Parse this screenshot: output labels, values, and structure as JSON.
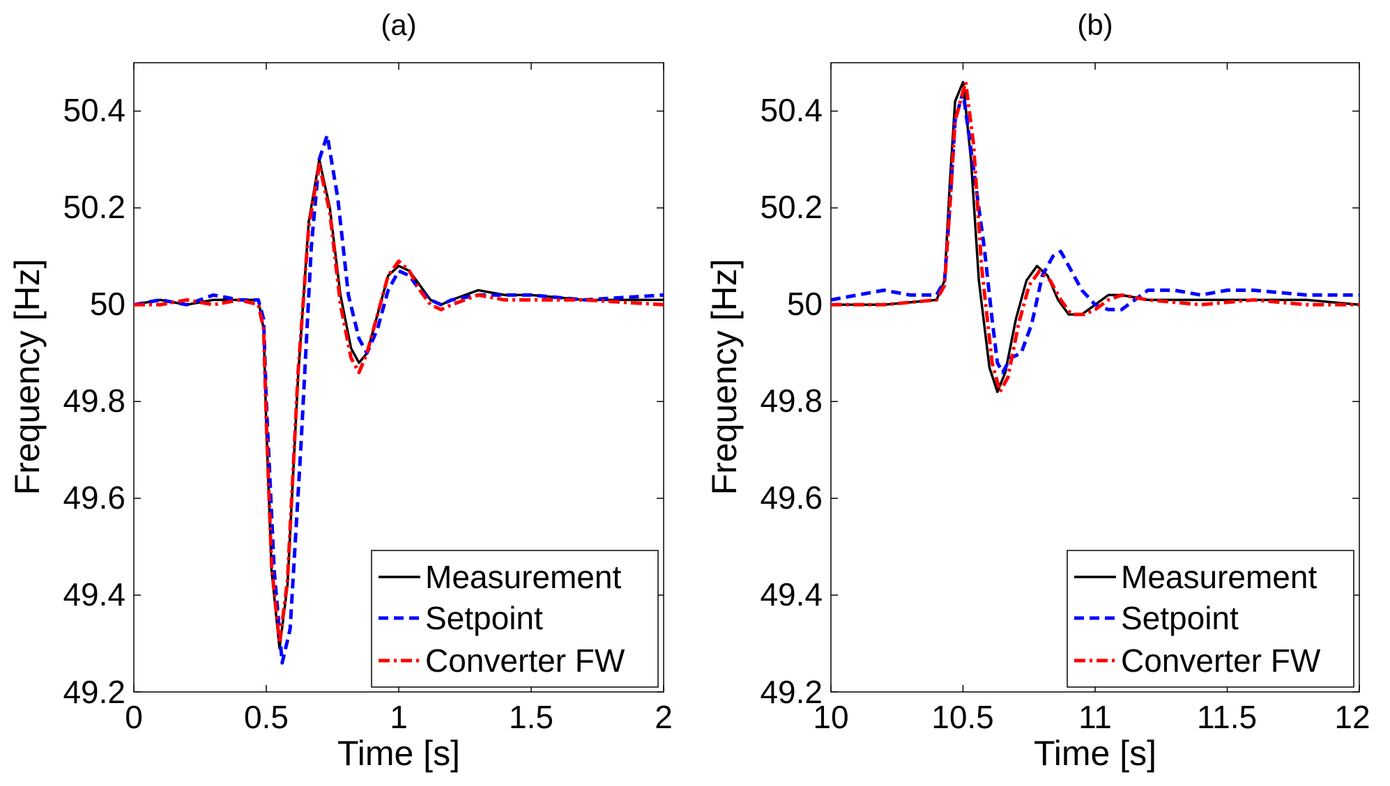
{
  "chart_data": [
    {
      "type": "line",
      "title": "(a)",
      "xlabel": "Time [s]",
      "ylabel": "Frequency [Hz]",
      "xlim": [
        0,
        2
      ],
      "ylim": [
        49.2,
        50.5
      ],
      "xticks": [
        "0",
        "0.5",
        "1",
        "1.5",
        "2"
      ],
      "xtick_values": [
        0,
        0.5,
        1,
        1.5,
        2
      ],
      "yticks": [
        "49.2",
        "49.4",
        "49.6",
        "49.8",
        "50.2",
        "50.4"
      ],
      "ytick_values": [
        49.2,
        49.4,
        49.6,
        49.8,
        50.2,
        50.4
      ],
      "yticks_extra": [
        "50"
      ],
      "legend_position": "bottom-right",
      "series": [
        {
          "name": "Measurement",
          "color": "#000000",
          "style": "solid",
          "x": [
            0,
            0.1,
            0.2,
            0.3,
            0.4,
            0.47,
            0.49,
            0.5,
            0.52,
            0.55,
            0.58,
            0.62,
            0.66,
            0.7,
            0.74,
            0.78,
            0.82,
            0.85,
            0.88,
            0.92,
            0.96,
            1.0,
            1.04,
            1.08,
            1.12,
            1.16,
            1.2,
            1.3,
            1.4,
            1.5,
            1.7,
            2.0
          ],
          "y": [
            50.0,
            50.01,
            50.0,
            50.01,
            50.01,
            50.01,
            49.95,
            49.75,
            49.45,
            49.29,
            49.42,
            49.85,
            50.17,
            50.3,
            50.2,
            50.02,
            49.91,
            49.88,
            49.9,
            49.98,
            50.06,
            50.08,
            50.07,
            50.04,
            50.01,
            50.0,
            50.01,
            50.03,
            50.02,
            50.02,
            50.01,
            50.01
          ]
        },
        {
          "name": "Setpoint",
          "color": "#0000ff",
          "style": "dashed",
          "x": [
            0,
            0.1,
            0.2,
            0.3,
            0.4,
            0.47,
            0.49,
            0.5,
            0.53,
            0.56,
            0.59,
            0.63,
            0.67,
            0.7,
            0.73,
            0.77,
            0.81,
            0.85,
            0.88,
            0.92,
            0.96,
            1.0,
            1.04,
            1.08,
            1.12,
            1.16,
            1.2,
            1.3,
            1.4,
            1.5,
            1.7,
            2.0
          ],
          "y": [
            50.0,
            50.01,
            50.0,
            50.02,
            50.01,
            50.01,
            49.97,
            49.8,
            49.45,
            49.26,
            49.33,
            49.7,
            50.12,
            50.3,
            50.35,
            50.22,
            50.02,
            49.93,
            49.9,
            49.95,
            50.03,
            50.07,
            50.06,
            50.03,
            50.01,
            50.0,
            50.01,
            50.02,
            50.02,
            50.02,
            50.01,
            50.02
          ]
        },
        {
          "name": "Converter FW",
          "color": "#ff0000",
          "style": "dashdot",
          "x": [
            0,
            0.1,
            0.2,
            0.3,
            0.4,
            0.47,
            0.49,
            0.5,
            0.52,
            0.55,
            0.58,
            0.62,
            0.66,
            0.7,
            0.74,
            0.78,
            0.82,
            0.85,
            0.88,
            0.92,
            0.96,
            1.0,
            1.04,
            1.08,
            1.12,
            1.16,
            1.2,
            1.3,
            1.4,
            1.5,
            1.7,
            2.0
          ],
          "y": [
            50.0,
            50.0,
            50.01,
            50.0,
            50.01,
            50.0,
            49.95,
            49.76,
            49.46,
            49.3,
            49.43,
            49.86,
            50.16,
            50.29,
            50.19,
            50.0,
            49.89,
            49.86,
            49.9,
            49.98,
            50.06,
            50.09,
            50.07,
            50.03,
            50.0,
            49.99,
            50.0,
            50.02,
            50.01,
            50.01,
            50.01,
            50.0
          ]
        }
      ]
    },
    {
      "type": "line",
      "title": "(b)",
      "xlabel": "Time [s]",
      "ylabel": "Frequency [Hz]",
      "xlim": [
        10,
        12
      ],
      "ylim": [
        49.2,
        50.5
      ],
      "xticks": [
        "10",
        "10.5",
        "11",
        "11.5",
        "12"
      ],
      "xtick_values": [
        10,
        10.5,
        11,
        11.5,
        12
      ],
      "yticks": [
        "49.2",
        "49.4",
        "49.6",
        "49.8",
        "50.2",
        "50.4"
      ],
      "ytick_values": [
        49.2,
        49.4,
        49.6,
        49.8,
        50.2,
        50.4
      ],
      "yticks_extra": [
        "50"
      ],
      "legend_position": "bottom-right",
      "series": [
        {
          "name": "Measurement",
          "color": "#000000",
          "style": "solid",
          "x": [
            10,
            10.2,
            10.4,
            10.43,
            10.45,
            10.47,
            10.5,
            10.53,
            10.56,
            10.6,
            10.63,
            10.66,
            10.7,
            10.74,
            10.78,
            10.82,
            10.86,
            10.9,
            10.95,
            11.0,
            11.05,
            11.1,
            11.2,
            11.4,
            11.6,
            11.8,
            12.0
          ],
          "y": [
            50.0,
            50.0,
            50.01,
            50.05,
            50.25,
            50.42,
            50.46,
            50.3,
            50.05,
            49.87,
            49.82,
            49.86,
            49.97,
            50.05,
            50.08,
            50.06,
            50.01,
            49.98,
            49.98,
            50.0,
            50.02,
            50.02,
            50.01,
            50.01,
            50.01,
            50.01,
            50.0
          ]
        },
        {
          "name": "Setpoint",
          "color": "#0000ff",
          "style": "dashed",
          "x": [
            10,
            10.1,
            10.2,
            10.3,
            10.4,
            10.43,
            10.45,
            10.47,
            10.5,
            10.53,
            10.56,
            10.58,
            10.61,
            10.63,
            10.65,
            10.68,
            10.72,
            10.76,
            10.8,
            10.84,
            10.87,
            10.9,
            10.95,
            11.0,
            11.05,
            11.1,
            11.2,
            11.3,
            11.4,
            11.5,
            11.6,
            11.8,
            12.0
          ],
          "y": [
            50.01,
            50.02,
            50.03,
            50.02,
            50.02,
            50.05,
            50.2,
            50.38,
            50.44,
            50.32,
            50.2,
            50.12,
            49.97,
            49.88,
            49.86,
            49.89,
            49.9,
            49.96,
            50.06,
            50.1,
            50.11,
            50.08,
            50.03,
            50.0,
            49.99,
            49.99,
            50.03,
            50.03,
            50.02,
            50.03,
            50.03,
            50.02,
            50.02
          ]
        },
        {
          "name": "Converter FW",
          "color": "#ff0000",
          "style": "dashdot",
          "x": [
            10,
            10.2,
            10.4,
            10.43,
            10.45,
            10.47,
            10.51,
            10.54,
            10.57,
            10.61,
            10.64,
            10.67,
            10.71,
            10.75,
            10.79,
            10.83,
            10.87,
            10.91,
            10.96,
            11.0,
            11.05,
            11.1,
            11.2,
            11.4,
            11.6,
            11.8,
            12.0
          ],
          "y": [
            50.0,
            50.0,
            50.01,
            50.04,
            50.2,
            50.38,
            50.46,
            50.33,
            50.08,
            49.88,
            49.82,
            49.85,
            49.96,
            50.04,
            50.07,
            50.05,
            50.01,
            49.98,
            49.98,
            49.99,
            50.01,
            50.02,
            50.01,
            50.0,
            50.01,
            50.0,
            50.0
          ]
        }
      ]
    }
  ]
}
